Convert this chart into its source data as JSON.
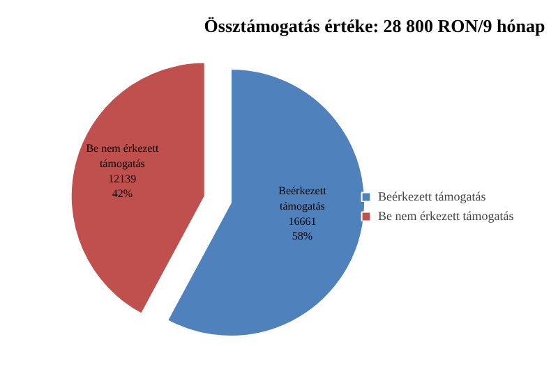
{
  "chart_data": {
    "type": "pie",
    "title": "Össztámogatás értéke: 28 800 RON/9 hónap",
    "categories": [
      "Beérkezett támogatás",
      "Be nem érkezett támogatás"
    ],
    "values": [
      16661,
      12139
    ],
    "colors": [
      "#4f81bd",
      "#c0504d"
    ],
    "value_labels": [
      "Beérkezett\ntámogatás\n16661\n58%",
      "Be nem érkezett\ntámogatás\n12139\n42%"
    ],
    "legend": "right"
  }
}
